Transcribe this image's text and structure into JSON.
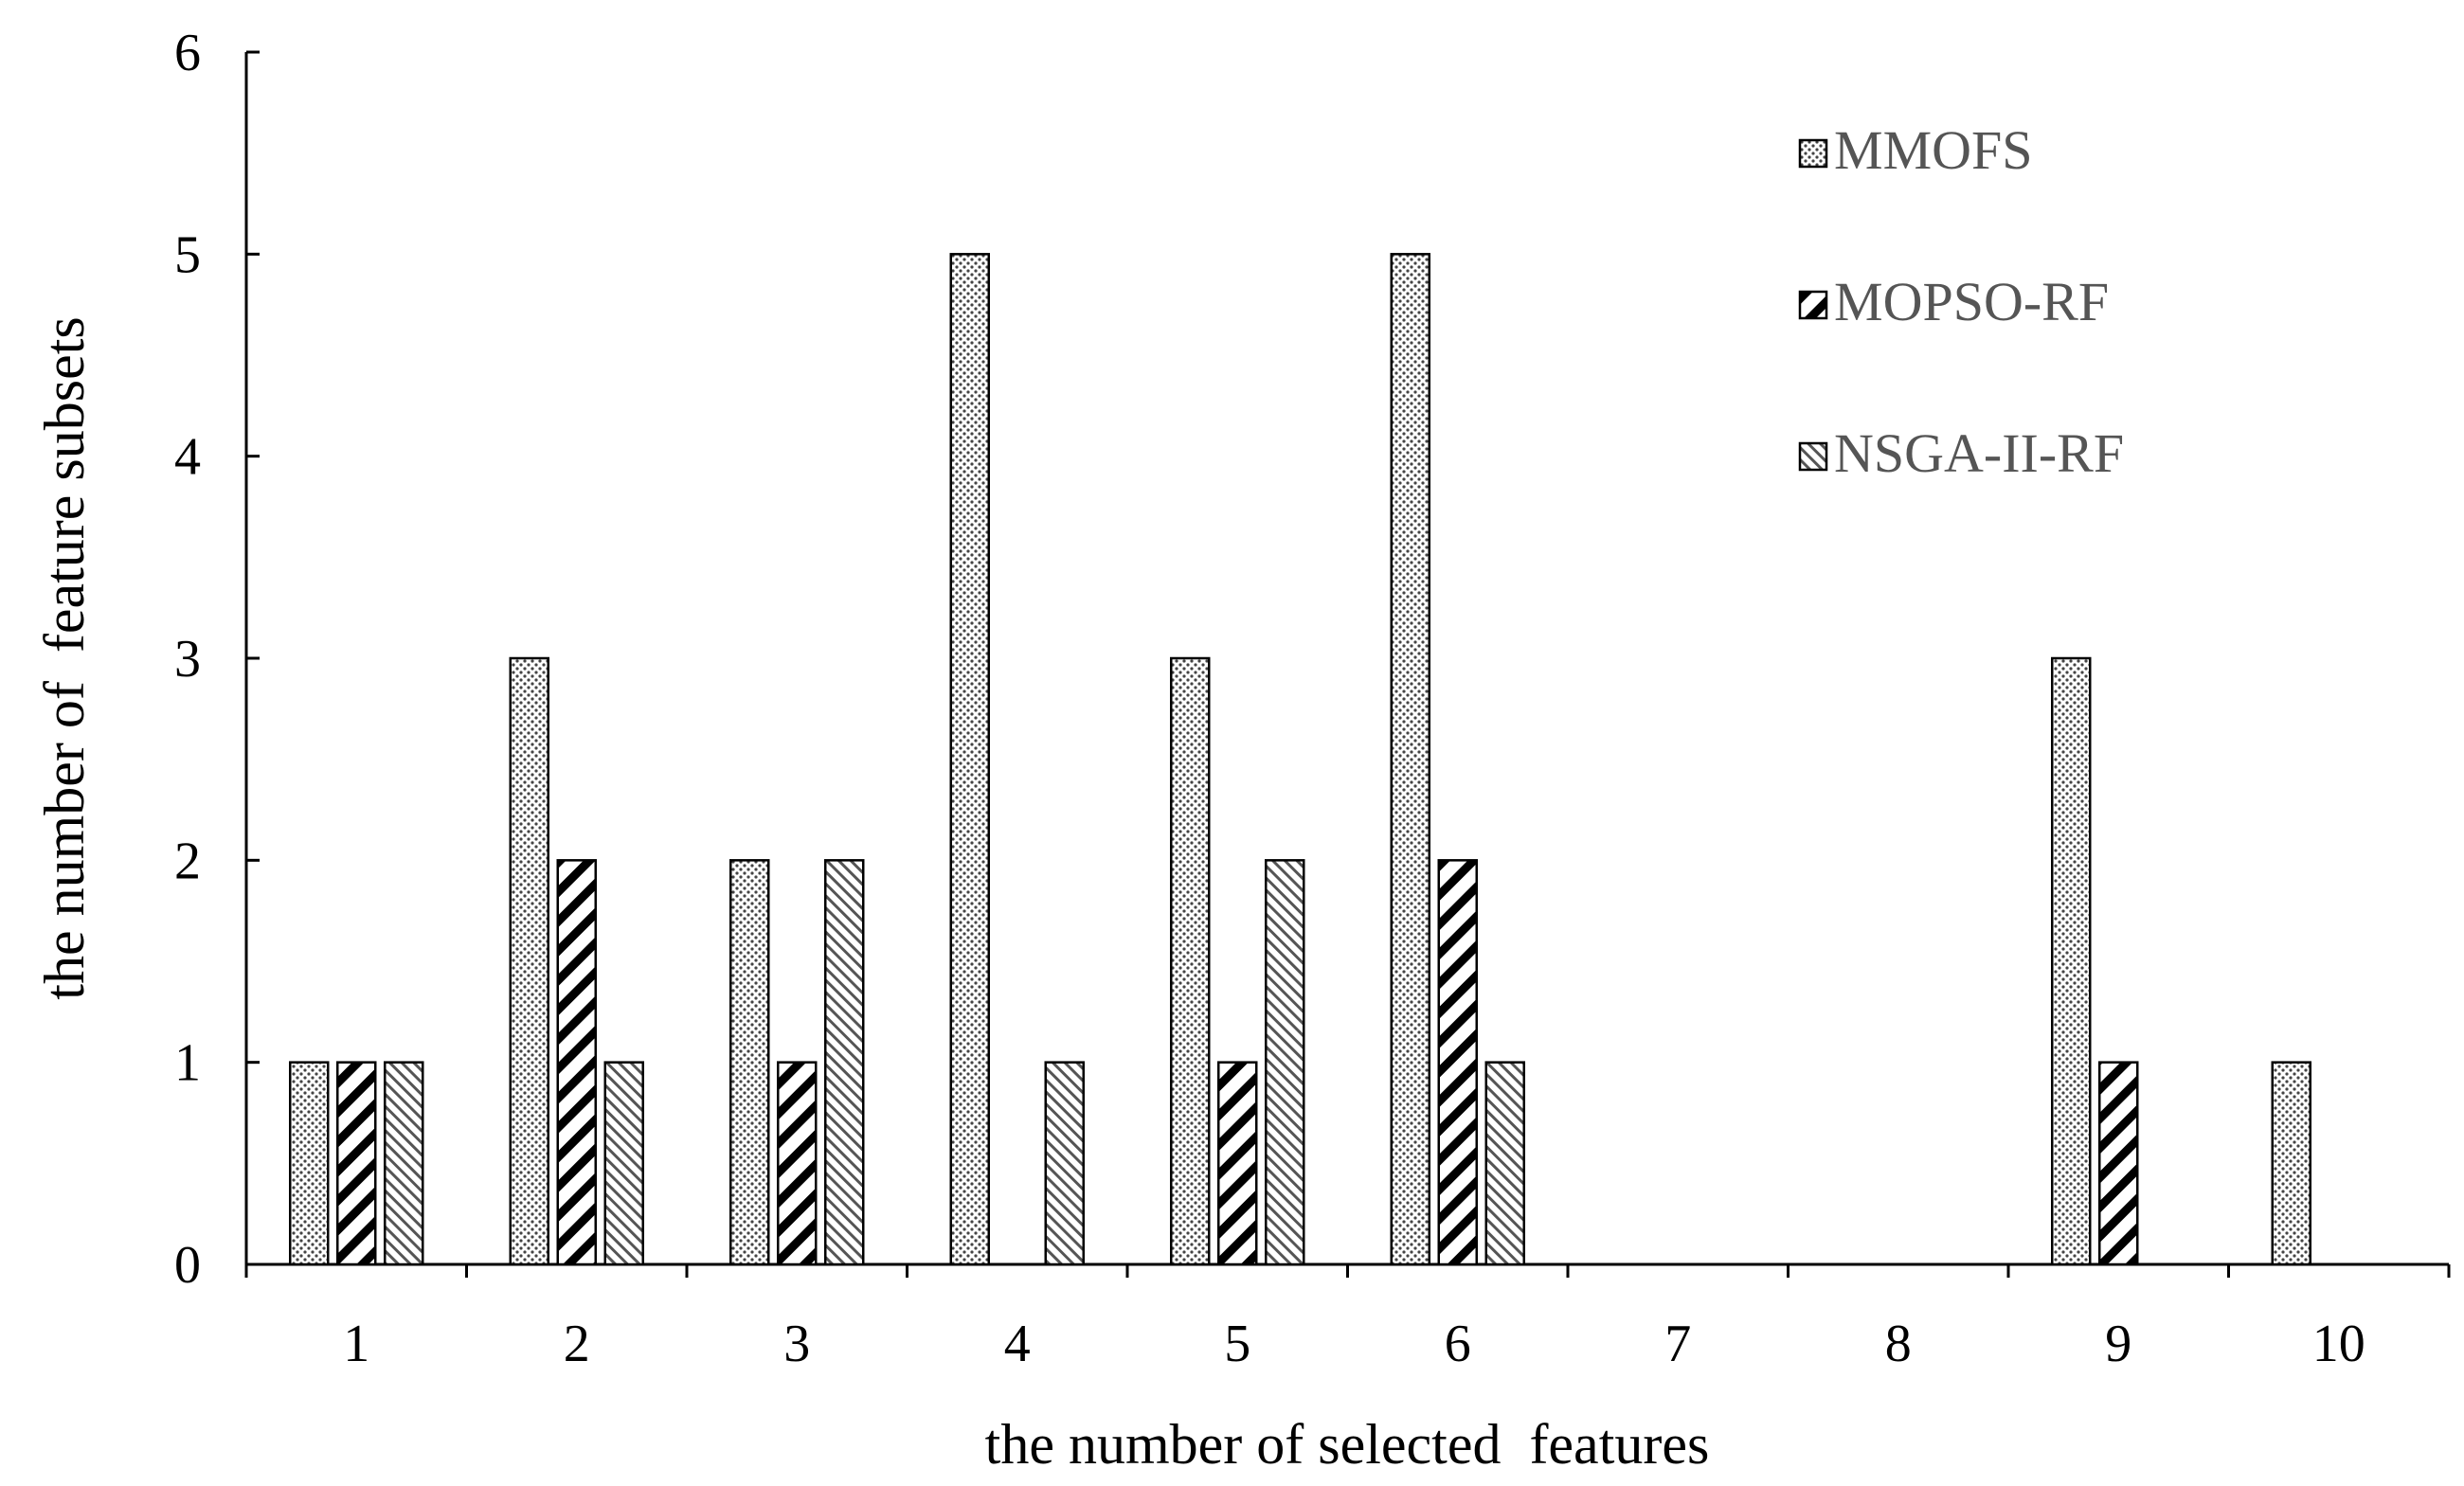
{
  "chart_data": {
    "type": "bar",
    "title": "",
    "xlabel": "the number of selected  features",
    "ylabel": "the number of  feature subsets",
    "categories": [
      "1",
      "2",
      "3",
      "4",
      "5",
      "6",
      "7",
      "8",
      "9",
      "10"
    ],
    "y_ticks": [
      "0",
      "1",
      "2",
      "3",
      "4",
      "5",
      "6"
    ],
    "ylim": [
      0,
      6
    ],
    "grid": false,
    "legend_position": "top-right",
    "series": [
      {
        "name": "MMOFS",
        "pattern": "dots",
        "values": [
          1,
          3,
          2,
          5,
          3,
          5,
          0,
          0,
          3,
          1
        ]
      },
      {
        "name": "MOPSO-RF",
        "pattern": "wide-diagonal-hatch",
        "values": [
          1,
          2,
          1,
          0,
          1,
          2,
          0,
          0,
          1,
          0
        ]
      },
      {
        "name": "NSGA-II-RF",
        "pattern": "fine-diagonal-hatch",
        "values": [
          1,
          1,
          2,
          1,
          2,
          1,
          0,
          0,
          0,
          0
        ]
      }
    ]
  },
  "colors": {
    "axis": "#000000",
    "bar_outline": "#000000",
    "bar_fill": "#ffffff",
    "legend_text": "#555555"
  }
}
